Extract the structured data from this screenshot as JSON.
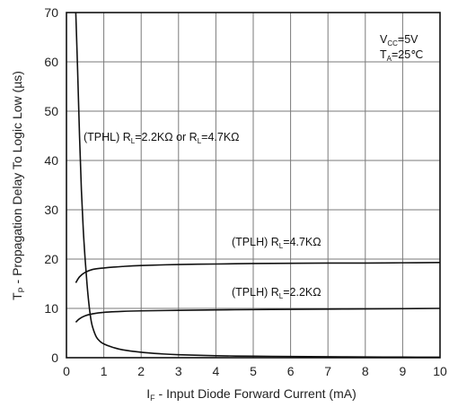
{
  "chart_data": {
    "type": "line",
    "xlabel": {
      "main": "I",
      "sub": "F",
      "rest": " - Input Diode Forward Current (mA)"
    },
    "ylabel": {
      "main": "T",
      "sub": "P",
      "rest": " - Propagation Delay To Logic Low (µs)"
    },
    "xlim": [
      0,
      10
    ],
    "ylim": [
      0,
      70
    ],
    "x_ticks": [
      "0",
      "1",
      "2",
      "3",
      "4",
      "5",
      "6",
      "7",
      "8",
      "9",
      "10"
    ],
    "y_ticks": [
      "0",
      "10",
      "20",
      "30",
      "40",
      "50",
      "60",
      "70"
    ],
    "grid": true,
    "conditions": {
      "vcc": {
        "main": "V",
        "sub": "CC",
        "rest": "=5V"
      },
      "ta": {
        "main": "T",
        "sub": "A",
        "rest": "=25℃"
      }
    },
    "series": [
      {
        "name": "(TPHL) R_L=2.2KΩ or R_L=4.7KΩ",
        "annotation": {
          "p1": "(TPHL) R",
          "s1": "L",
          "p2": "=2.2KΩ or R",
          "s2": "L",
          "p3": "=4.7KΩ"
        },
        "x": [
          0.25,
          0.3,
          0.35,
          0.4,
          0.45,
          0.5,
          0.55,
          0.6,
          0.65,
          0.7,
          0.8,
          0.9,
          1.0,
          1.2,
          1.5,
          2,
          2.5,
          3,
          4,
          5,
          6,
          7,
          8,
          9,
          10
        ],
        "y": [
          70,
          58,
          45,
          34,
          26,
          20,
          15,
          11,
          8,
          6.2,
          4.2,
          3.3,
          2.8,
          2.2,
          1.6,
          1.1,
          0.8,
          0.6,
          0.4,
          0.3,
          0.25,
          0.2,
          0.15,
          0.12,
          0.1
        ]
      },
      {
        "name": "(TPLH) R_L=4.7KΩ",
        "annotation": {
          "p1": "(TPLH) R",
          "s1": "L",
          "p2": "=4.7KΩ"
        },
        "x": [
          0.25,
          0.35,
          0.5,
          0.7,
          1,
          1.5,
          2,
          3,
          4,
          5,
          6,
          7,
          8,
          9,
          10
        ],
        "y": [
          15.2,
          16.4,
          17.3,
          17.9,
          18.2,
          18.5,
          18.7,
          18.9,
          19.0,
          19.1,
          19.15,
          19.2,
          19.2,
          19.25,
          19.3
        ]
      },
      {
        "name": "(TPLH) R_L=2.2KΩ",
        "annotation": {
          "p1": "(TPLH) R",
          "s1": "L",
          "p2": "=2.2KΩ"
        },
        "x": [
          0.25,
          0.35,
          0.5,
          0.7,
          1,
          1.5,
          2,
          3,
          4,
          5,
          6,
          7,
          8,
          9,
          10
        ],
        "y": [
          7.2,
          7.9,
          8.5,
          8.9,
          9.2,
          9.4,
          9.5,
          9.6,
          9.7,
          9.75,
          9.8,
          9.85,
          9.9,
          9.95,
          10.0
        ]
      }
    ]
  }
}
